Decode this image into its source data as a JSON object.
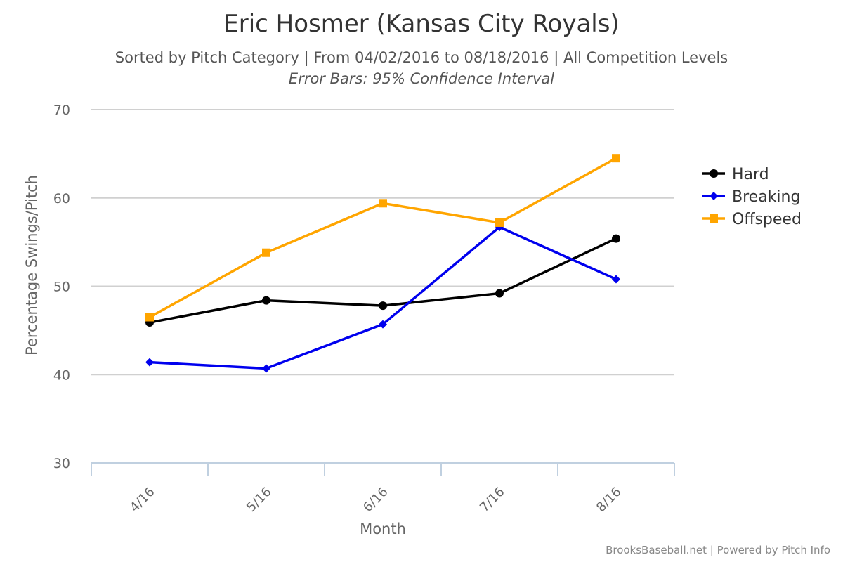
{
  "title": "Eric Hosmer (Kansas City Royals)",
  "subtitle": "Sorted by Pitch Category | From 04/02/2016 to 08/18/2016 | All Competition Levels",
  "subtitle2": "Error Bars: 95% Confidence Interval",
  "credit": "BrooksBaseball.net | Powered by Pitch Info",
  "chart_data": {
    "type": "line",
    "title": "Eric Hosmer (Kansas City Royals)",
    "subtitle": "Sorted by Pitch Category | From 04/02/2016 to 08/18/2016 | All Competition Levels",
    "annotation": "Error Bars: 95% Confidence Interval",
    "xlabel": "Month",
    "ylabel": "Percentage Swings/Pitch",
    "categories": [
      "4/16",
      "5/16",
      "6/16",
      "7/16",
      "8/16"
    ],
    "ylim": [
      30,
      70
    ],
    "yticks": [
      30,
      40,
      50,
      60,
      70
    ],
    "grid": true,
    "legend_position": "right",
    "series": [
      {
        "name": "Hard",
        "color": "#000000",
        "marker": "circle",
        "values": [
          45.9,
          48.4,
          47.8,
          49.2,
          55.4
        ]
      },
      {
        "name": "Breaking",
        "color": "#0000ee",
        "marker": "diamond",
        "values": [
          41.4,
          40.7,
          45.7,
          56.7,
          50.8
        ]
      },
      {
        "name": "Offspeed",
        "color": "#ffa500",
        "marker": "square",
        "values": [
          46.5,
          53.8,
          59.4,
          57.2,
          64.5
        ]
      }
    ]
  }
}
